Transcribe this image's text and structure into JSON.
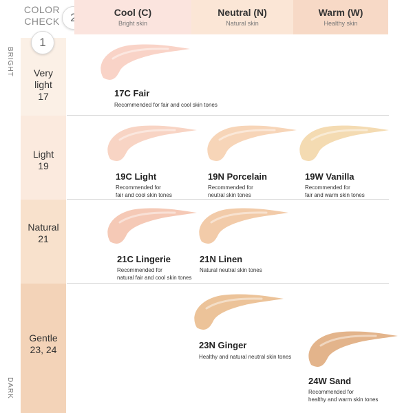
{
  "header": {
    "color_check": [
      "COLOR",
      "CHECK"
    ],
    "step_one": "1",
    "step_two": "2",
    "columns": [
      {
        "title": "Cool (C)",
        "subtitle": "Bright skin",
        "color": "#fbe4de"
      },
      {
        "title": "Neutral (N)",
        "subtitle": "Natural skin",
        "color": "#fbe6d6"
      },
      {
        "title": "Warm (W)",
        "subtitle": "Healthy skin",
        "color": "#f7d9c6"
      }
    ]
  },
  "axis": {
    "top": "BRIGHT",
    "bottom": "DARK"
  },
  "rows": [
    {
      "lines": [
        "Very",
        "light",
        "17"
      ],
      "color": "#fbf0e6"
    },
    {
      "lines": [
        "Light",
        "19"
      ],
      "color": "#fbeade"
    },
    {
      "lines": [
        "Natural",
        "21"
      ],
      "color": "#f8e1cc"
    },
    {
      "lines": [
        "Gentle",
        "23, 24"
      ],
      "color": "#f3d3b8"
    }
  ],
  "shades": [
    {
      "name": "17C Fair",
      "desc": [
        "Recommended for fair and cool skin tones"
      ],
      "color": "#f9d3c7"
    },
    {
      "name": "19C Light",
      "desc": [
        "Recommended for",
        "fair and cool skin tones"
      ],
      "color": "#f8d4c4"
    },
    {
      "name": "19N Porcelain",
      "desc": [
        "Recommended for",
        "neutral skin tones"
      ],
      "color": "#f7d5b8"
    },
    {
      "name": "19W Vanilla",
      "desc": [
        "Recommended for",
        "fair and warm skin tones"
      ],
      "color": "#f4dbb2"
    },
    {
      "name": "21C Lingerie",
      "desc": [
        "Recommended for",
        "natural fair and cool skin tones"
      ],
      "color": "#f5c9b6"
    },
    {
      "name": "21N Linen",
      "desc": [
        "Natural neutral skin tones"
      ],
      "color": "#f2cba9"
    },
    {
      "name": "23N Ginger",
      "desc": [
        "Healthy and natural neutral skin tones"
      ],
      "color": "#ecc399"
    },
    {
      "name": "24W Sand",
      "desc": [
        "Recommended for",
        "healthy and warm skin tones"
      ],
      "color": "#e3b48b"
    }
  ]
}
